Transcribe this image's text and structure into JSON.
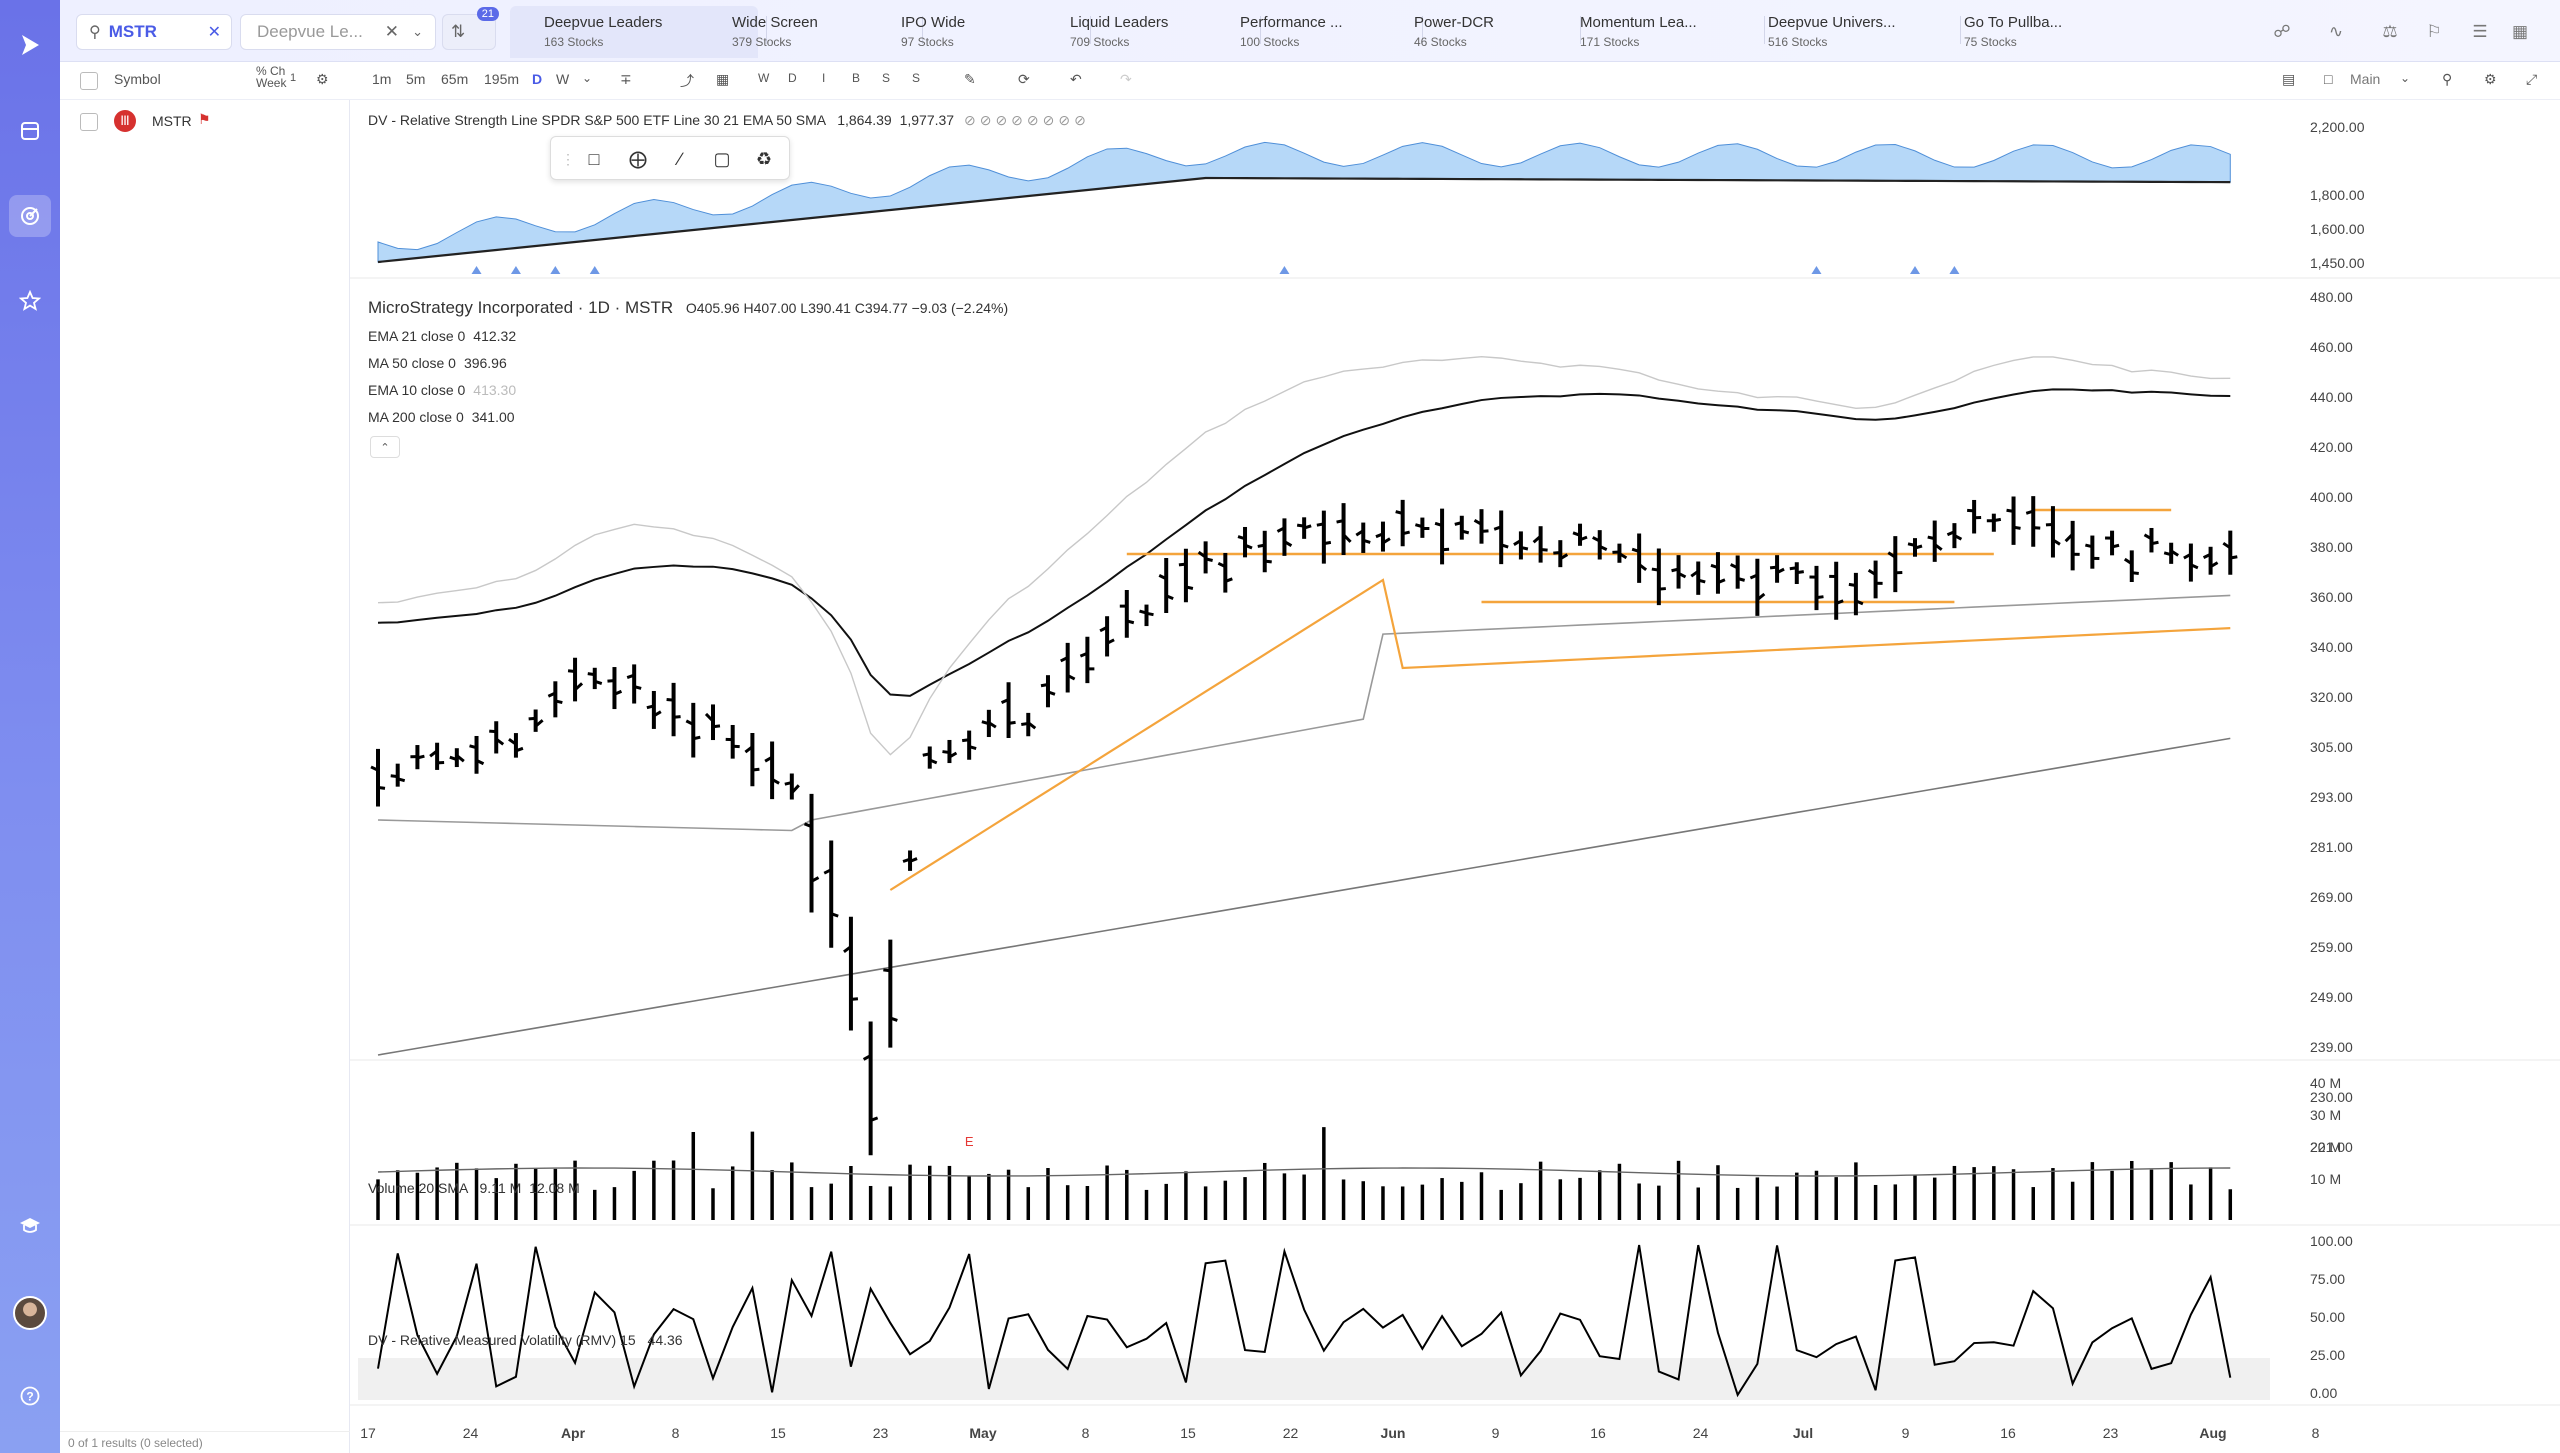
{
  "colors": {
    "accent": "#4a5be6",
    "rail": "#7380ec",
    "ema21": "#111111",
    "ma50": "#999999",
    "ema10": "#c8c8c8",
    "ma200": "#777777",
    "orange": "#f4a43c",
    "rs_fill": "#a9d1f7",
    "rs_line": "#4f8fd8"
  },
  "search": {
    "value": "MSTR",
    "icon": "search-icon"
  },
  "watchlist_select": {
    "value": "Deepvue Le...",
    "count_badge": "21"
  },
  "watchlist_tabs": [
    {
      "title": "Deepvue Leaders",
      "sub": "163 Stocks",
      "active": true
    },
    {
      "title": "Wide Screen",
      "sub": "379 Stocks"
    },
    {
      "title": "IPO Wide",
      "sub": "97 Stocks"
    },
    {
      "title": "Liquid Leaders",
      "sub": "709 Stocks"
    },
    {
      "title": "Performance ...",
      "sub": "100 Stocks"
    },
    {
      "title": "Power-DCR",
      "sub": "46 Stocks"
    },
    {
      "title": "Momentum Lea...",
      "sub": "171 Stocks"
    },
    {
      "title": "Deepvue Univers...",
      "sub": "516 Stocks"
    },
    {
      "title": "Go To Pullba...",
      "sub": "75 Stocks"
    }
  ],
  "panel": {
    "col_symbol": "Symbol",
    "col_change": "% Ch",
    "col_change2": "Week",
    "col_badge": "1",
    "rows": [
      {
        "symbol": "MSTR"
      }
    ],
    "footer": "0 of 1 results (0 selected)"
  },
  "toolbar": {
    "intervals": [
      "1m",
      "5m",
      "65m",
      "195m",
      "D",
      "W"
    ],
    "active_interval": "D",
    "letters": [
      "W",
      "D",
      "I",
      "B",
      "S",
      "S"
    ],
    "layout": "Main"
  },
  "rs_pane": {
    "legend": "DV - Relative Strength Line SPDR S&P 500 ETF Line 30 21 EMA 50 SMA",
    "v1": "1,864.39",
    "v2": "1,977.37",
    "ticks": [
      "2,200.00",
      "1,800.00",
      "1,600.00",
      "1,450.00"
    ]
  },
  "main_pane": {
    "title": "MicroStrategy Incorporated · 1D · MSTR",
    "ohlc": "O405.96  H407.00  L390.41  C394.77  −9.03 (−2.24%)",
    "indicators": [
      {
        "label": "EMA 21 close 0",
        "value": "412.32"
      },
      {
        "label": "MA 50 close 0",
        "value": "396.96"
      },
      {
        "label": "EMA 10 close 0",
        "value": "413.30"
      },
      {
        "label": "MA 200 close 0",
        "value": "341.00"
      }
    ],
    "ticks": [
      "480.00",
      "460.00",
      "440.00",
      "420.00",
      "400.00",
      "380.00",
      "360.00",
      "340.00",
      "320.00",
      "305.00",
      "293.00",
      "281.00",
      "269.00",
      "259.00",
      "249.00",
      "239.00",
      "230.00",
      "221.00"
    ],
    "earnings_marker": "E"
  },
  "volume_pane": {
    "legend": "Volume 20 SMA",
    "v1": "9.11 M",
    "v2": "12.08 M",
    "ticks": [
      "40 M",
      "30 M",
      "20 M",
      "10 M"
    ]
  },
  "rmv_pane": {
    "legend": "DV - Relative Measured Volatility (RMV) 15",
    "value": "44.36",
    "ticks": [
      "100.00",
      "75.00",
      "50.00",
      "25.00",
      "0.00"
    ]
  },
  "x_axis": [
    "17",
    "24",
    "Apr",
    "8",
    "15",
    "23",
    "May",
    "8",
    "15",
    "22",
    "Jun",
    "9",
    "16",
    "24",
    "Jul",
    "9",
    "16",
    "23",
    "Aug",
    "8"
  ]
}
